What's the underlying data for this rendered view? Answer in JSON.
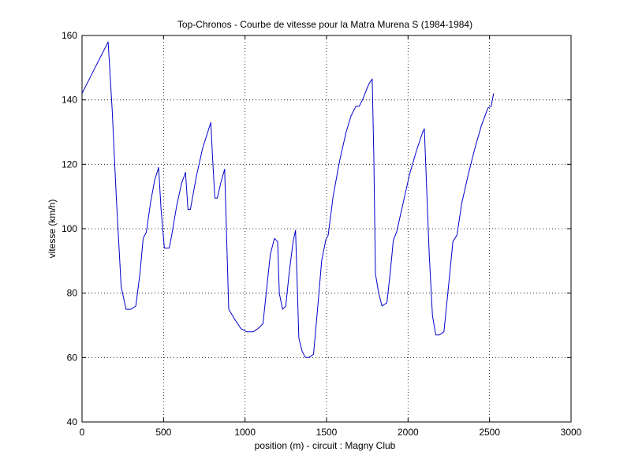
{
  "chart_data": {
    "type": "line",
    "title": "Top-Chronos - Courbe de vitesse pour la Matra Murena S (1984-1984)",
    "xlabel": "position (m) - circuit : Magny Club",
    "ylabel": "vitesse (km/h)",
    "xlim": [
      0,
      3000
    ],
    "ylim": [
      40,
      160
    ],
    "xticks": [
      0,
      500,
      1000,
      1500,
      2000,
      2500,
      3000
    ],
    "yticks": [
      40,
      60,
      80,
      100,
      120,
      140,
      160
    ],
    "grid": true,
    "grid_style": "dotted",
    "line_color": "#0000cc",
    "series": [
      {
        "x": [
          0,
          40,
          80,
          120,
          160,
          185,
          210,
          240,
          270,
          300,
          330,
          355,
          375,
          395,
          420,
          445,
          470,
          485,
          505,
          535,
          550,
          580,
          610,
          635,
          650,
          665,
          700,
          740,
          790,
          800,
          815,
          830,
          850,
          875,
          900,
          935,
          975,
          1010,
          1050,
          1080,
          1110,
          1130,
          1155,
          1180,
          1200,
          1210,
          1230,
          1250,
          1270,
          1295,
          1310,
          1330,
          1350,
          1370,
          1390,
          1420,
          1445,
          1470,
          1495,
          1510,
          1540,
          1580,
          1620,
          1650,
          1680,
          1700,
          1720,
          1760,
          1780,
          1790,
          1800,
          1820,
          1840,
          1870,
          1890,
          1910,
          1930,
          1970,
          2010,
          2050,
          2090,
          2100,
          2130,
          2150,
          2170,
          2190,
          2220,
          2250,
          2275,
          2300,
          2330,
          2370,
          2410,
          2450,
          2490,
          2510,
          2525
        ],
        "y": [
          142,
          146,
          150,
          154,
          158,
          137,
          110,
          82,
          75,
          75,
          76,
          86,
          97,
          99,
          108,
          115,
          119,
          106,
          94,
          94,
          98,
          107,
          114,
          117.5,
          106,
          106,
          116,
          125,
          133,
          123,
          109.5,
          109.5,
          114,
          118.5,
          75,
          72,
          69,
          68,
          68,
          69,
          70.5,
          80,
          92,
          97,
          96,
          80,
          75,
          76,
          86,
          96,
          99.5,
          66,
          62,
          60,
          60,
          61,
          75,
          90,
          96.5,
          98,
          110,
          121,
          130,
          135,
          138,
          138,
          140,
          145,
          146.5,
          123,
          86,
          80,
          76,
          77,
          86,
          96.5,
          99,
          108,
          117,
          124,
          130,
          131,
          92,
          73,
          67,
          67,
          68,
          83,
          96,
          98,
          108,
          117,
          125,
          132,
          137.5,
          138,
          142
        ]
      }
    ]
  }
}
